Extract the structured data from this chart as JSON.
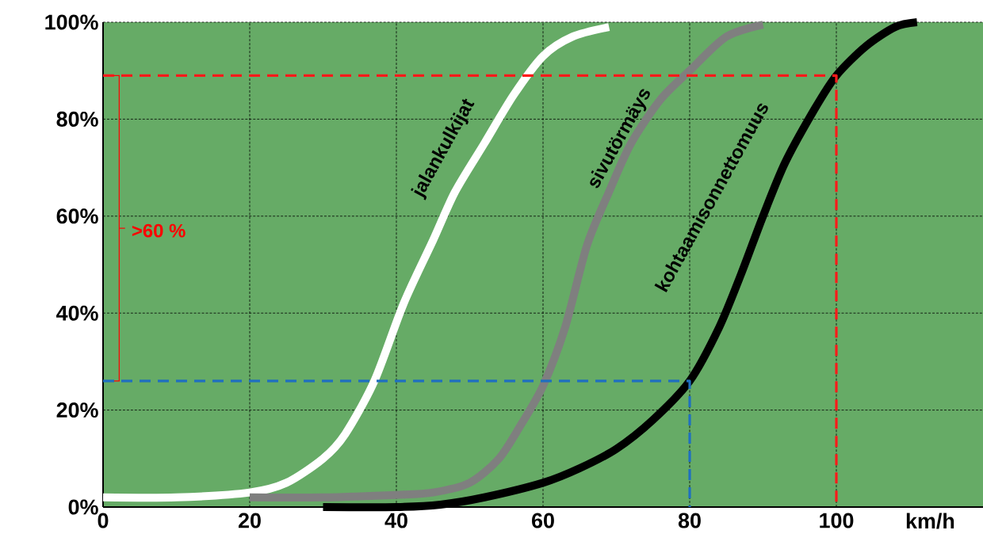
{
  "chart_data": {
    "type": "line",
    "xlabel": "km/h",
    "xlim": [
      0,
      120
    ],
    "ylim": [
      0,
      100
    ],
    "xticks": [
      0,
      20,
      40,
      60,
      80,
      100
    ],
    "yticks": [
      {
        "value": 0,
        "label": "0%"
      },
      {
        "value": 20,
        "label": "20%"
      },
      {
        "value": 40,
        "label": "40%"
      },
      {
        "value": 60,
        "label": "60%"
      },
      {
        "value": 80,
        "label": "80%"
      },
      {
        "value": 100,
        "label": "100%"
      }
    ],
    "grid": true,
    "annotations": [
      ">60 %"
    ],
    "series": [
      {
        "name": "jalankulkijat",
        "color": "#ffffff",
        "x": [
          0,
          10,
          20,
          25,
          30,
          33,
          37,
          41,
          45,
          48,
          52,
          56,
          60,
          64,
          69
        ],
        "values": [
          2,
          2,
          3,
          5,
          10,
          15,
          26,
          42,
          55,
          65,
          75,
          85,
          93,
          97,
          99
        ]
      },
      {
        "name": "sivutörmäys",
        "color": "#7f7f7f",
        "x": [
          20,
          30,
          40,
          45,
          50,
          54,
          57,
          60,
          63,
          66,
          69,
          72,
          76,
          80,
          85,
          90
        ],
        "values": [
          2,
          2,
          2.5,
          3,
          5,
          10,
          17,
          25,
          37,
          54,
          65,
          75,
          84,
          90,
          97,
          99.5
        ]
      },
      {
        "name": "kohtaamisonnettomuus",
        "color": "#000000",
        "x": [
          30,
          40,
          46,
          52,
          60,
          65,
          70,
          75,
          80,
          84,
          87,
          90,
          93,
          97,
          100,
          104,
          108,
          111
        ],
        "values": [
          0,
          0,
          0.5,
          2,
          5,
          8,
          12,
          18,
          26,
          37,
          48,
          60,
          71,
          82,
          89,
          95,
          99,
          100
        ]
      },
      {
        "color": "#1f6fc0",
        "line_style": "dashed",
        "x": [
          0,
          80,
          80
        ],
        "values": [
          26,
          26,
          0
        ]
      },
      {
        "color": "#ff1a1a",
        "line_style": "dashed",
        "x": [
          0,
          100,
          100
        ],
        "values": [
          89,
          89,
          0
        ]
      }
    ]
  }
}
